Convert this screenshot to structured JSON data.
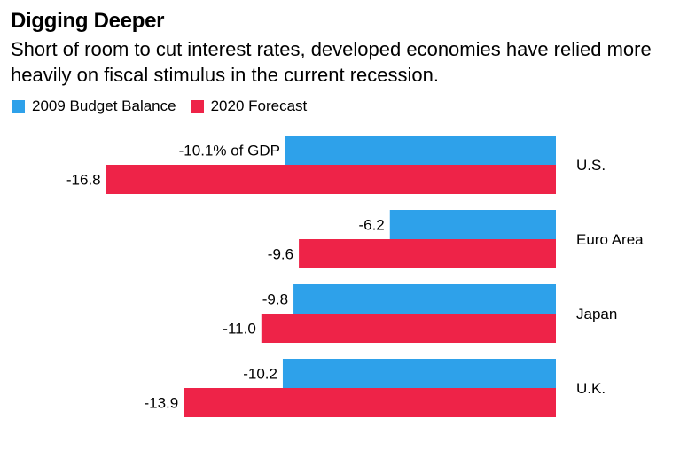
{
  "header": {
    "title": "Digging Deeper",
    "subtitle": "Short of room to cut interest rates, developed economies have relied more heavily on fiscal stimulus in the current recession."
  },
  "colors": {
    "series_2009": "#2ea1ea",
    "series_2020": "#ee2348"
  },
  "chart_data": {
    "type": "bar",
    "orientation": "horizontal",
    "title": "Digging Deeper",
    "subtitle": "Short of room to cut interest rates, developed economies have relied more heavily on fiscal stimulus in the current recession.",
    "categories": [
      "U.S.",
      "Euro Area",
      "Japan",
      "U.K."
    ],
    "series": [
      {
        "name": "2009 Budget Balance",
        "values": [
          -10.1,
          -6.2,
          -9.8,
          -10.2
        ],
        "labels": [
          "-10.1% of GDP",
          "-6.2",
          "-9.8",
          "-10.2"
        ]
      },
      {
        "name": "2020 Forecast",
        "values": [
          -16.8,
          -9.6,
          -11.0,
          -13.9
        ],
        "labels": [
          "-16.8",
          "-9.6",
          "-11.0",
          "-13.9"
        ]
      }
    ],
    "xlim": [
      -16.8,
      0
    ],
    "legend_position": "top-left",
    "grid": false
  }
}
